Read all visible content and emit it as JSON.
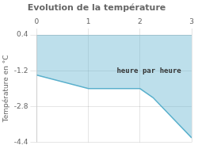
{
  "chart_data": {
    "type": "line",
    "title": "Evolution de la température",
    "ylabel": "Température en °C",
    "x": [
      0,
      1,
      2,
      2.25,
      3
    ],
    "series": [
      {
        "values": [
          -1.4,
          -2.0,
          -2.0,
          -2.4,
          -4.2
        ],
        "color": "#5ab0cc"
      }
    ],
    "xlim": [
      0,
      3
    ],
    "xticks": [
      0,
      1,
      2,
      3
    ],
    "ylim": [
      -4.4,
      0.4
    ],
    "yticks": [
      0.4,
      -1.2,
      -2.8,
      -4.4
    ],
    "grid": true,
    "annotations": [
      {
        "text": "heure par heure",
        "x": 1.55,
        "y": -1.05
      }
    ]
  }
}
